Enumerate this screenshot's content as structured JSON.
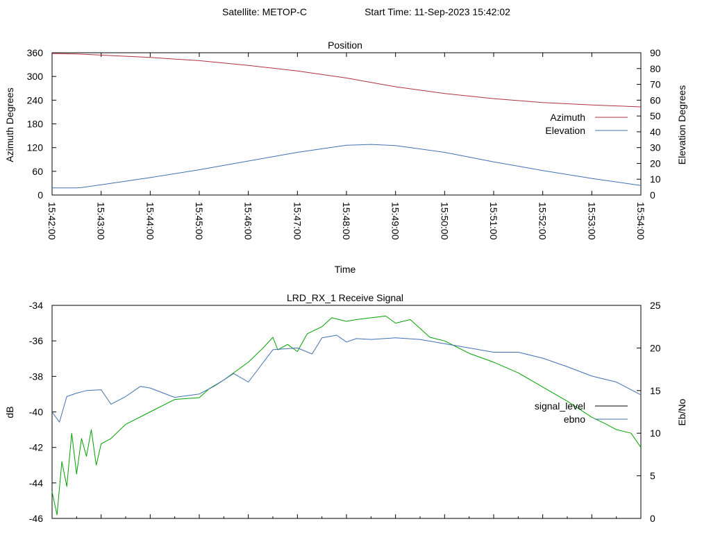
{
  "header": {
    "satellite_label": "Satellite: METOP-C",
    "start_time_label": "Start Time: 11-Sep-2023 15:42:02"
  },
  "chart_data": [
    {
      "type": "line",
      "title": "Position",
      "xlabel": "Time",
      "ylabel": "Azimuth Degrees",
      "y2label": "Elevation Degrees",
      "x_ticks": [
        "15:42:00",
        "15:43:00",
        "15:44:00",
        "15:45:00",
        "15:46:00",
        "15:47:00",
        "15:48:00",
        "15:49:00",
        "15:50:00",
        "15:51:00",
        "15:52:00",
        "15:53:00",
        "15:54:00"
      ],
      "xlim": [
        0,
        12
      ],
      "ylim": [
        0,
        360
      ],
      "y_ticks": [
        0,
        60,
        120,
        180,
        240,
        300,
        360
      ],
      "y2lim": [
        0,
        90
      ],
      "y2_ticks": [
        0,
        10,
        20,
        30,
        40,
        50,
        60,
        70,
        80,
        90
      ],
      "legend_position": "right",
      "series": [
        {
          "name": "Azimuth",
          "axis": "left",
          "color": "#b03040",
          "x": [
            0,
            0.5,
            1,
            2,
            3,
            4,
            5,
            6,
            6.5,
            7,
            8,
            9,
            10,
            11,
            12
          ],
          "values": [
            358,
            357,
            354,
            348,
            340,
            328,
            314,
            296,
            285,
            274,
            257,
            244,
            234,
            228,
            223
          ]
        },
        {
          "name": "Elevation",
          "axis": "right",
          "color": "#4070b0",
          "x": [
            0,
            0.5,
            0.6,
            1,
            2,
            3,
            4,
            5,
            6,
            6.5,
            7,
            8,
            9,
            10,
            11,
            12
          ],
          "values": [
            4.5,
            4.5,
            4.7,
            6.5,
            11,
            16,
            21.5,
            27,
            31.5,
            32,
            31.3,
            27,
            21,
            15.5,
            10.5,
            6
          ]
        }
      ]
    },
    {
      "type": "line",
      "title": "LRD_RX_1 Receive Signal",
      "ylabel": "dB",
      "y2label": "Eb/No",
      "ylim": [
        -46,
        -34
      ],
      "y_ticks": [
        -46,
        -44,
        -42,
        -40,
        -38,
        -36,
        -34
      ],
      "y2lim": [
        0,
        25
      ],
      "y2_ticks": [
        0,
        5,
        10,
        15,
        20,
        25
      ],
      "legend_position": "right",
      "series": [
        {
          "name": "signal_level",
          "axis": "left",
          "color": "#000000",
          "legend_color": "#000000",
          "trace_color": "#00a000",
          "x": [
            0,
            0.1,
            0.2,
            0.3,
            0.4,
            0.5,
            0.6,
            0.7,
            0.8,
            0.9,
            1,
            1.2,
            1.5,
            2,
            2.5,
            3,
            3.2,
            3.5,
            3.8,
            4,
            4.3,
            4.5,
            4.6,
            4.8,
            5,
            5.2,
            5.5,
            5.7,
            6,
            6.2,
            6.5,
            6.8,
            7,
            7.3,
            7.5,
            7.7,
            8,
            8.5,
            9,
            9.5,
            10,
            10.5,
            11,
            11.3,
            11.5,
            11.8,
            12
          ],
          "values": [
            -44.5,
            -45.8,
            -42.8,
            -44.2,
            -41.2,
            -43.5,
            -41.5,
            -42.5,
            -41.0,
            -43.0,
            -41.8,
            -41.5,
            -40.7,
            -40.0,
            -39.3,
            -39.2,
            -38.7,
            -38.2,
            -37.6,
            -37.2,
            -36.4,
            -35.8,
            -36.5,
            -36.2,
            -36.6,
            -35.6,
            -35.2,
            -34.7,
            -34.9,
            -34.8,
            -34.7,
            -34.6,
            -35.0,
            -34.8,
            -35.3,
            -35.8,
            -36.0,
            -36.7,
            -37.2,
            -37.8,
            -38.6,
            -39.4,
            -40.3,
            -40.7,
            -41.0,
            -41.2,
            -42.0
          ]
        },
        {
          "name": "ebno",
          "axis": "right",
          "color": "#4070b0",
          "x": [
            0,
            0.15,
            0.3,
            0.5,
            0.7,
            1,
            1.2,
            1.5,
            1.8,
            2,
            2.5,
            3,
            3.3,
            3.7,
            4,
            4.5,
            5,
            5.3,
            5.5,
            5.8,
            6,
            6.2,
            6.5,
            7,
            7.5,
            8,
            8.5,
            9,
            9.5,
            10,
            10.5,
            11,
            11.5,
            12
          ],
          "values": [
            12.5,
            11.3,
            14.3,
            14.7,
            15.0,
            15.1,
            13.4,
            14.3,
            15.5,
            15.3,
            14.2,
            14.6,
            15.5,
            17.0,
            16.0,
            19.8,
            20.0,
            19.3,
            21.2,
            21.5,
            20.7,
            21.1,
            21.0,
            21.2,
            21.0,
            20.5,
            20.0,
            19.5,
            19.5,
            18.8,
            17.8,
            16.7,
            16.0,
            14.5
          ]
        }
      ]
    }
  ]
}
